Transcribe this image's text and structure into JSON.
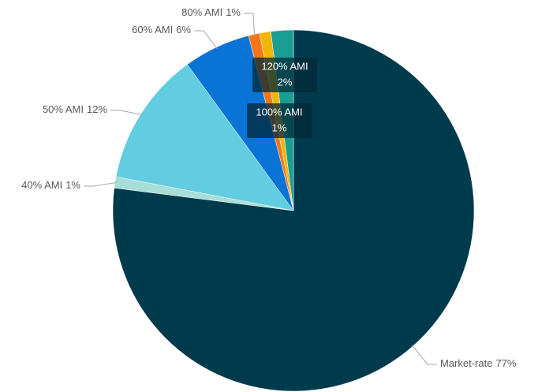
{
  "chart_data": {
    "type": "pie",
    "categories": [
      "Market-rate",
      "40% AMI",
      "50% AMI",
      "60% AMI",
      "80% AMI",
      "100% AMI",
      "120% AMI"
    ],
    "values": [
      77,
      1,
      12,
      6,
      1,
      1,
      2
    ],
    "value_labels": [
      "77%",
      "1%",
      "12%",
      "6%",
      "1%",
      "1%",
      "2%"
    ],
    "colors": [
      "#003a4d",
      "#a7dfd8",
      "#62cde0",
      "#0a74d6",
      "#f5761a",
      "#f0b70a",
      "#1a9e94"
    ]
  }
}
